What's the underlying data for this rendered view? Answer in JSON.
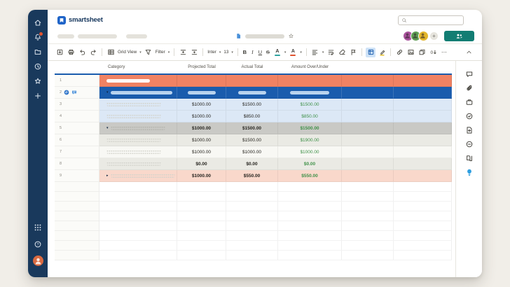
{
  "brand": {
    "name": "smartsheet"
  },
  "left_rail": {
    "top": [
      {
        "name": "home",
        "icon": "home"
      },
      {
        "name": "notifications",
        "icon": "bell",
        "badge": true
      },
      {
        "name": "browse",
        "icon": "folder"
      },
      {
        "name": "recents",
        "icon": "clock"
      },
      {
        "name": "favorites",
        "icon": "star"
      },
      {
        "name": "create",
        "icon": "plus"
      }
    ],
    "bottom": [
      {
        "name": "app-launcher",
        "icon": "waffle"
      },
      {
        "name": "help",
        "icon": "help"
      },
      {
        "name": "account",
        "icon": "avatar"
      }
    ]
  },
  "top_bar": {
    "search_value": ""
  },
  "file_bar": {
    "avatars": [
      {
        "color": "#a9539c"
      },
      {
        "color": "#5e9c53"
      },
      {
        "color": "#e3b62c"
      }
    ],
    "add_label": "+"
  },
  "toolbar": {
    "view_label": "Grid View",
    "filter_label": "Filter",
    "font_family": "Inter",
    "font_size": "13",
    "bold": "B",
    "italic": "I",
    "underline": "U",
    "strikethrough": "S",
    "color_letter": "A",
    "more": "⋯"
  },
  "grid": {
    "columns": [
      "",
      "Category",
      "Projected Total",
      "Actual Total",
      "Amount Over/Under",
      "",
      ""
    ],
    "rows": [
      {
        "num": "1",
        "style": "salmon",
        "ph": {
          "c1": "white"
        }
      },
      {
        "num": "2",
        "style": "blue",
        "caret": "down",
        "row_icons": [
          "paperclip",
          "comment"
        ],
        "ph": {
          "c1": "blue",
          "c2": "blue",
          "c3": "blue",
          "c4": "blue"
        }
      },
      {
        "num": "3",
        "style": "lightblue",
        "ph": {
          "c1": "dotted"
        },
        "values": [
          "$1000.00",
          "$1500.00",
          "$1500.00"
        ]
      },
      {
        "num": "4",
        "style": "lightblue",
        "ph": {
          "c1": "dotted"
        },
        "values": [
          "$1000.00",
          "$850.00",
          "$850.00"
        ]
      },
      {
        "num": "5",
        "style": "gray",
        "bold": true,
        "caret": "down",
        "ph": {
          "c1": "dotted"
        },
        "values": [
          "$1000.00",
          "$1500.00",
          "$1500.00"
        ]
      },
      {
        "num": "6",
        "style": "lightgray",
        "ph": {
          "c1": "dotted"
        },
        "values": [
          "$1000.00",
          "$1500.00",
          "$1900.00"
        ]
      },
      {
        "num": "7",
        "style": "white",
        "ph": {
          "c1": "dotted"
        },
        "values": [
          "$1000.00",
          "$1000.00",
          "$1000.00"
        ]
      },
      {
        "num": "8",
        "style": "lightgray",
        "bold": true,
        "ph": {
          "c1": "dotted"
        },
        "values": [
          "$0.00",
          "$0.00",
          "$0.00"
        ]
      },
      {
        "num": "9",
        "style": "pink",
        "bold": true,
        "caret": "right",
        "ph": {
          "c1": "dotted-long"
        },
        "values": [
          "$1000.00",
          "$550.00",
          "$550.00"
        ]
      }
    ],
    "empty_rows": 8
  },
  "right_panel": {
    "items": [
      {
        "name": "conversations",
        "icon": "comment"
      },
      {
        "name": "attachments",
        "icon": "paperclip"
      },
      {
        "name": "proofs",
        "icon": "work"
      },
      {
        "name": "update-requests",
        "icon": "check-circle"
      },
      {
        "name": "create-doc",
        "icon": "file-plus"
      },
      {
        "name": "activity-log",
        "icon": "history"
      },
      {
        "name": "summary",
        "icon": "book"
      },
      {
        "name": "insights",
        "icon": "bulb",
        "accent": true
      }
    ]
  },
  "colors": {
    "navy": "#19395c",
    "row_salmon": "#f08263",
    "row_blue": "#1a5cad",
    "row_lightblue": "#dce8f6",
    "row_gray": "#c9c9c5",
    "row_lightgray": "#eaeae4",
    "row_pink": "#f9d8cb",
    "value_green": "#3f9149",
    "share_teal": "#127d73",
    "accent_bulb": "#2f9fe0"
  }
}
